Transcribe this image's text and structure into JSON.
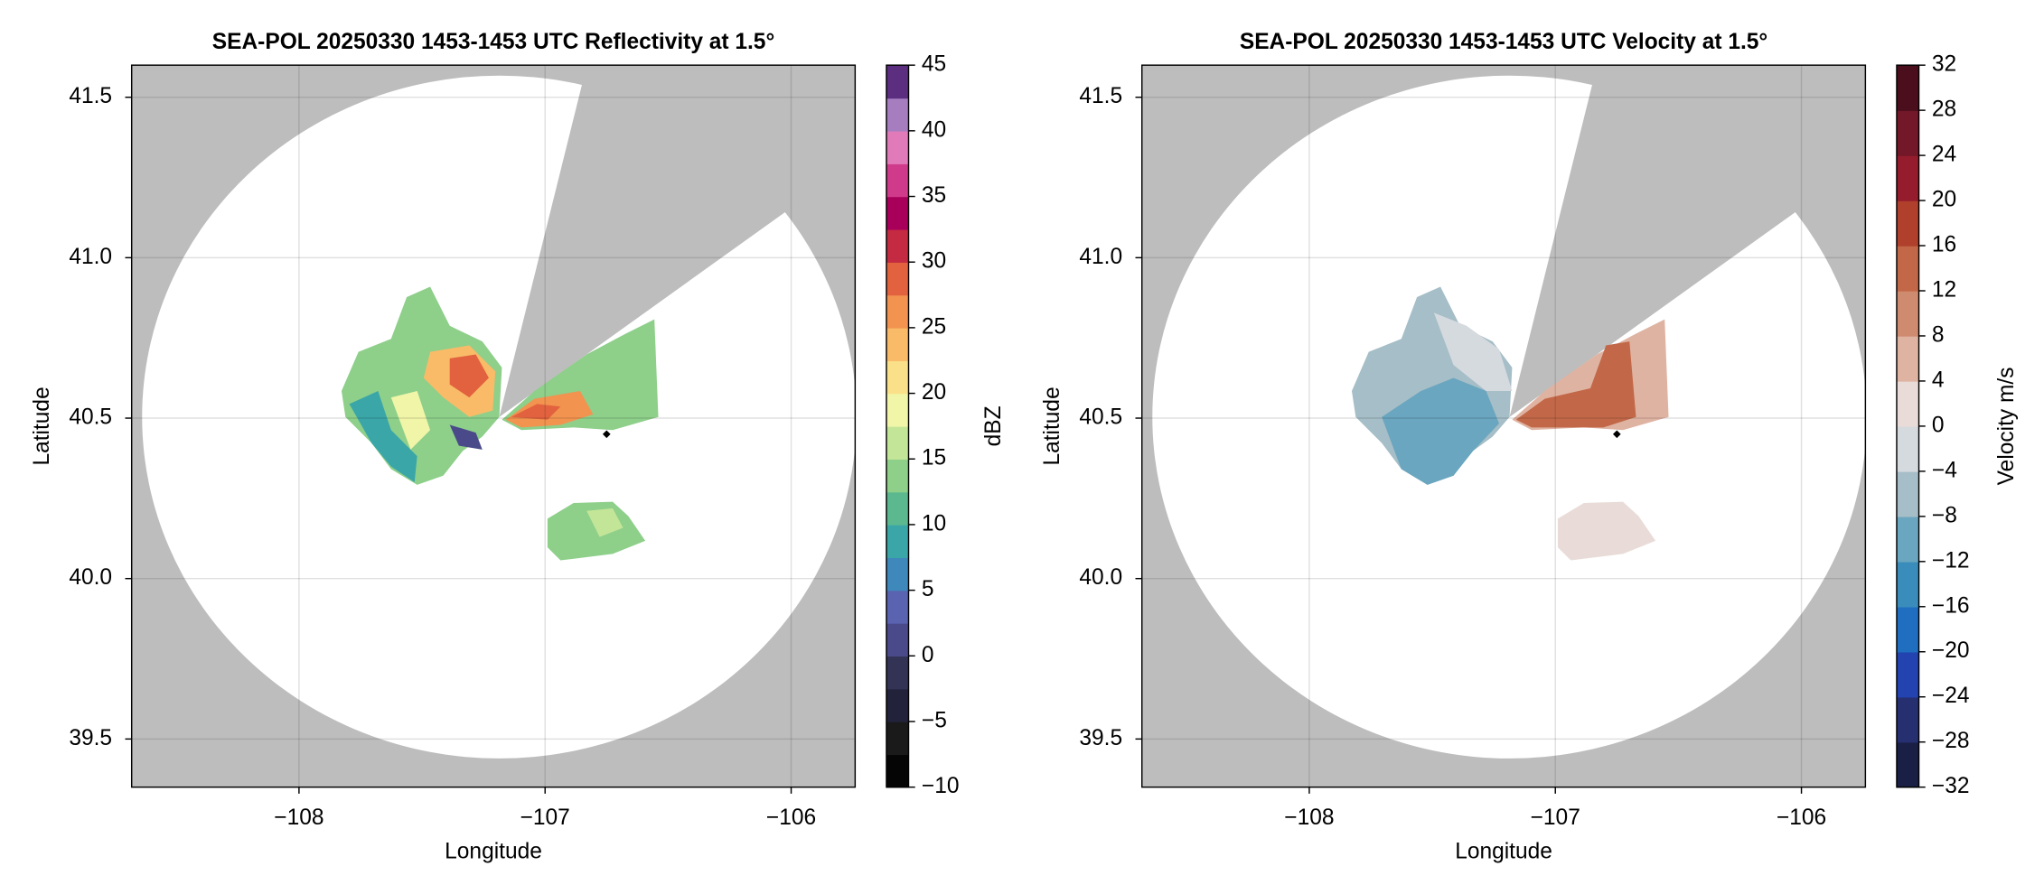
{
  "chart_data": [
    {
      "type": "radar",
      "title": "SEA-POL 20250330 1453-1453 UTC Reflectivity at 1.5°",
      "x_label": "Longitude",
      "y_label": "Latitude",
      "xlim": [
        -108.68,
        -105.74
      ],
      "ylim": [
        39.35,
        41.6
      ],
      "xticks": [
        {
          "value": -108,
          "label": "−108"
        },
        {
          "value": -107,
          "label": "−107"
        },
        {
          "value": -106,
          "label": "−106"
        }
      ],
      "yticks": [
        39.5,
        {
          "value": 40,
          "label": "40.0"
        },
        40.5,
        {
          "value": 41,
          "label": "41.0"
        },
        41.5
      ],
      "grid": true,
      "x": [
        -106.75
      ],
      "y": [
        40.45
      ],
      "colorbar": {
        "label": "dBZ",
        "lim": [
          -10,
          45
        ],
        "ticks": [
          {
            "value": -10,
            "label": "−10"
          },
          {
            "value": -5,
            "label": "−5"
          },
          0,
          5,
          10,
          15,
          20,
          25,
          30,
          35,
          40,
          45
        ],
        "colors": [
          "#050505",
          "#1a1a1a",
          "#22223a",
          "#333355",
          "#4a4a8a",
          "#5a63b0",
          "#3f88bb",
          "#3aa6a8",
          "#5cb88f",
          "#8ecf8a",
          "#c3e597",
          "#f0f5a8",
          "#fbe08a",
          "#f9bb68",
          "#f2934f",
          "#e2623f",
          "#c42a41",
          "#a8005a",
          "#d03a8a",
          "#e07ab8",
          "#a67ec0",
          "#5b2e80"
        ]
      }
    },
    {
      "type": "radar",
      "title": "SEA-POL 20250330 1453-1453 UTC Velocity at 1.5°",
      "x_label": "Longitude",
      "y_label": "Latitude",
      "xlim": [
        -108.68,
        -105.74
      ],
      "ylim": [
        39.35,
        41.6
      ],
      "xticks": [
        {
          "value": -108,
          "label": "−108"
        },
        {
          "value": -107,
          "label": "−107"
        },
        {
          "value": -106,
          "label": "−106"
        }
      ],
      "yticks": [
        39.5,
        {
          "value": 40,
          "label": "40.0"
        },
        40.5,
        {
          "value": 41,
          "label": "41.0"
        },
        41.5
      ],
      "grid": true,
      "x": [
        -106.75
      ],
      "y": [
        40.45
      ],
      "colorbar": {
        "label": "Velocity m/s",
        "lim": [
          -32,
          32
        ],
        "ticks": [
          {
            "value": -32,
            "label": "−32"
          },
          {
            "value": -28,
            "label": "−28"
          },
          {
            "value": -24,
            "label": "−24"
          },
          {
            "value": -20,
            "label": "−20"
          },
          {
            "value": -16,
            "label": "−16"
          },
          {
            "value": -12,
            "label": "−12"
          },
          {
            "value": -8,
            "label": "−8"
          },
          {
            "value": -4,
            "label": "−4"
          },
          0,
          4,
          8,
          12,
          16,
          20,
          24,
          28,
          32
        ],
        "colors": [
          "#1a1f45",
          "#262f70",
          "#2343b0",
          "#1f6ec0",
          "#3a8dbb",
          "#6aa6bf",
          "#a6bec7",
          "#d5dadf",
          "#e9dcd8",
          "#dfb3a2",
          "#cf8b70",
          "#c26848",
          "#b0402c",
          "#951c2c",
          "#721828",
          "#4a0e1c"
        ]
      }
    }
  ]
}
